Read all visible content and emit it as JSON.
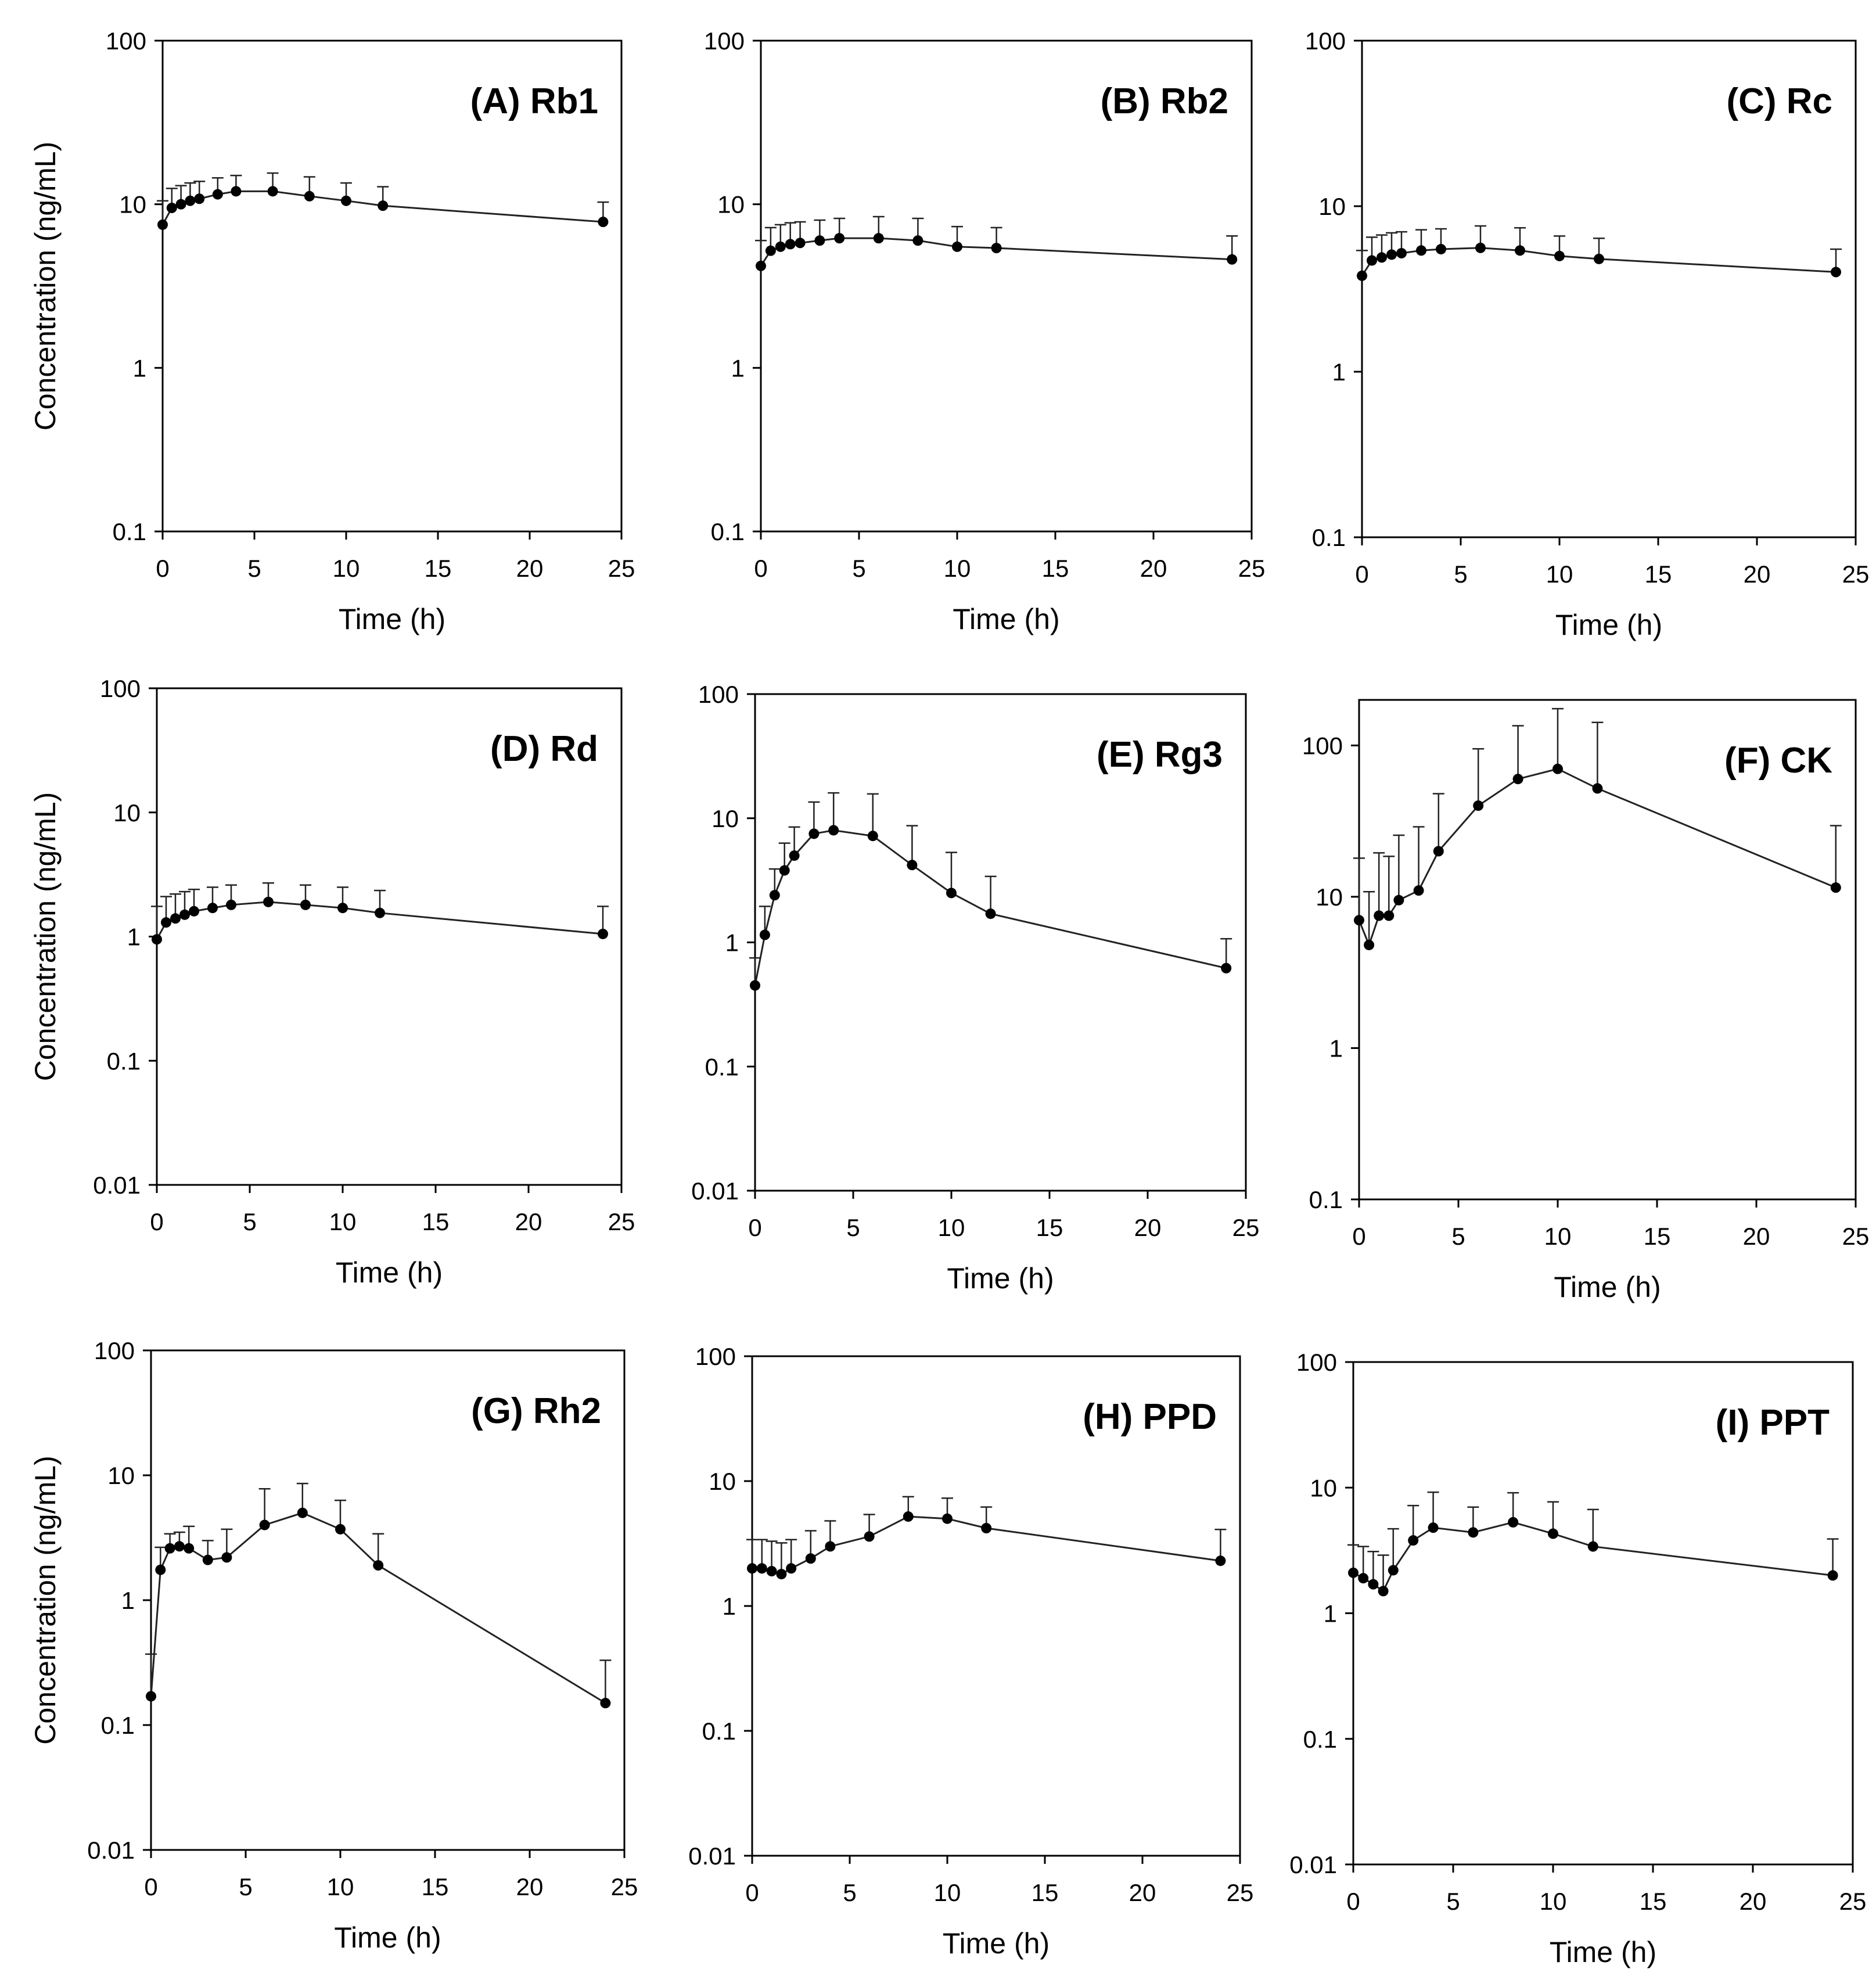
{
  "chart_data": [
    {
      "type": "line",
      "title": "(A) Rb1",
      "xlabel": "Time (h)",
      "ylabel": "Concentration (ng/mL)",
      "xlim": [
        0,
        25
      ],
      "ylim": [
        0.1,
        100
      ],
      "yscale": "log",
      "xticks": [
        "0",
        "5",
        "10",
        "15",
        "20",
        "25"
      ],
      "yticks": [
        "0.1",
        "1",
        "10",
        "100"
      ],
      "series": [
        {
          "name": "Rb1",
          "x": [
            0,
            0.5,
            1,
            1.5,
            2,
            3,
            4,
            6,
            8,
            10,
            12,
            24
          ],
          "y": [
            7.5,
            9.5,
            10.0,
            10.5,
            10.8,
            11.5,
            12.0,
            12.0,
            11.2,
            10.5,
            9.8,
            7.8
          ],
          "err": [
            3.0,
            3.0,
            3.0,
            3.0,
            3.0,
            3.0,
            3.0,
            3.5,
            3.5,
            3.0,
            3.0,
            2.5
          ]
        }
      ]
    },
    {
      "type": "line",
      "title": "(B) Rb2",
      "xlabel": "Time (h)",
      "ylabel": "",
      "xlim": [
        0,
        25
      ],
      "ylim": [
        0.1,
        100
      ],
      "yscale": "log",
      "xticks": [
        "0",
        "5",
        "10",
        "15",
        "20",
        "25"
      ],
      "yticks": [
        "0.1",
        "1",
        "10",
        "100"
      ],
      "series": [
        {
          "name": "Rb2",
          "x": [
            0,
            0.5,
            1,
            1.5,
            2,
            3,
            4,
            6,
            8,
            10,
            12,
            24
          ],
          "y": [
            4.2,
            5.2,
            5.5,
            5.7,
            5.8,
            6.0,
            6.2,
            6.2,
            6.0,
            5.5,
            5.4,
            4.6
          ],
          "err": [
            1.8,
            2.0,
            2.0,
            2.0,
            2.0,
            2.0,
            2.0,
            2.2,
            2.2,
            1.8,
            1.8,
            1.8
          ]
        }
      ]
    },
    {
      "type": "line",
      "title": "(C) Rc",
      "xlabel": "Time (h)",
      "ylabel": "",
      "xlim": [
        0,
        25
      ],
      "ylim": [
        0.1,
        100
      ],
      "yscale": "log",
      "xticks": [
        "0",
        "5",
        "10",
        "15",
        "20",
        "25"
      ],
      "yticks": [
        "0.1",
        "1",
        "10",
        "100"
      ],
      "series": [
        {
          "name": "Rc",
          "x": [
            0,
            0.5,
            1,
            1.5,
            2,
            3,
            4,
            6,
            8,
            10,
            12,
            24
          ],
          "y": [
            3.8,
            4.7,
            4.9,
            5.1,
            5.2,
            5.4,
            5.5,
            5.6,
            5.4,
            5.0,
            4.8,
            4.0
          ],
          "err": [
            1.6,
            1.8,
            1.8,
            1.8,
            1.8,
            1.8,
            1.8,
            2.0,
            2.0,
            1.6,
            1.6,
            1.5
          ]
        }
      ]
    },
    {
      "type": "line",
      "title": "(D) Rd",
      "xlabel": "Time (h)",
      "ylabel": "Concentration (ng/mL)",
      "xlim": [
        0,
        25
      ],
      "ylim": [
        0.01,
        100
      ],
      "yscale": "log",
      "xticks": [
        "0",
        "5",
        "10",
        "15",
        "20",
        "25"
      ],
      "yticks": [
        "0.01",
        "0.1",
        "1",
        "10",
        "100"
      ],
      "series": [
        {
          "name": "Rd",
          "x": [
            0,
            0.5,
            1,
            1.5,
            2,
            3,
            4,
            6,
            8,
            10,
            12,
            24
          ],
          "y": [
            0.95,
            1.3,
            1.4,
            1.5,
            1.6,
            1.7,
            1.8,
            1.9,
            1.8,
            1.7,
            1.55,
            1.05
          ],
          "err": [
            0.8,
            0.8,
            0.8,
            0.8,
            0.8,
            0.8,
            0.8,
            0.8,
            0.8,
            0.8,
            0.8,
            0.7
          ]
        }
      ]
    },
    {
      "type": "line",
      "title": "(E) Rg3",
      "xlabel": "Time (h)",
      "ylabel": "",
      "xlim": [
        0,
        25
      ],
      "ylim": [
        0.01,
        100
      ],
      "yscale": "log",
      "xticks": [
        "0",
        "5",
        "10",
        "15",
        "20",
        "25"
      ],
      "yticks": [
        "0.01",
        "0.1",
        "1",
        "10",
        "100"
      ],
      "series": [
        {
          "name": "Rg3",
          "x": [
            0,
            0.5,
            1,
            1.5,
            2,
            3,
            4,
            6,
            8,
            10,
            12,
            24
          ],
          "y": [
            0.45,
            1.15,
            2.4,
            3.8,
            5.0,
            7.5,
            8.0,
            7.2,
            4.2,
            2.5,
            1.7,
            0.62
          ],
          "err": [
            0.3,
            0.8,
            1.5,
            2.5,
            3.5,
            6.0,
            8.0,
            8.5,
            4.5,
            2.8,
            1.7,
            0.45
          ]
        }
      ]
    },
    {
      "type": "line",
      "title": "(F) CK",
      "xlabel": "Time (h)",
      "ylabel": "",
      "xlim": [
        0,
        25
      ],
      "ylim": [
        0.1,
        200
      ],
      "yscale": "log",
      "xticks": [
        "0",
        "5",
        "10",
        "15",
        "20",
        "25"
      ],
      "yticks": [
        "0.1",
        "1",
        "10",
        "100"
      ],
      "series": [
        {
          "name": "CK",
          "x": [
            0,
            0.5,
            1,
            1.5,
            2,
            3,
            4,
            6,
            8,
            10,
            12,
            24
          ],
          "y": [
            7.0,
            4.8,
            7.5,
            7.5,
            9.5,
            11.0,
            20.0,
            40.0,
            60.0,
            70.0,
            52.0,
            11.5
          ],
          "err": [
            11.0,
            6.0,
            12.0,
            11.0,
            16.0,
            18.0,
            28.0,
            55.0,
            75.0,
            105.0,
            90.0,
            18.0
          ]
        }
      ]
    },
    {
      "type": "line",
      "title": "(G) Rh2",
      "xlabel": "Time (h)",
      "ylabel": "Concentration (ng/mL)",
      "xlim": [
        0,
        25
      ],
      "ylim": [
        0.01,
        100
      ],
      "yscale": "log",
      "xticks": [
        "0",
        "5",
        "10",
        "15",
        "20",
        "25"
      ],
      "yticks": [
        "0.01",
        "0.1",
        "1",
        "10",
        "100"
      ],
      "series": [
        {
          "name": "Rh2",
          "x": [
            0,
            0.5,
            1,
            1.5,
            2,
            3,
            4,
            6,
            8,
            10,
            12,
            24
          ],
          "y": [
            0.17,
            1.75,
            2.6,
            2.7,
            2.6,
            2.1,
            2.2,
            4.0,
            5.0,
            3.7,
            1.9,
            0.15
          ],
          "err": [
            0.2,
            0.9,
            0.8,
            0.8,
            1.3,
            0.9,
            1.5,
            3.8,
            3.6,
            2.6,
            1.5,
            0.18
          ]
        }
      ]
    },
    {
      "type": "line",
      "title": "(H) PPD",
      "xlabel": "Time (h)",
      "ylabel": "",
      "xlim": [
        0,
        25
      ],
      "ylim": [
        0.01,
        100
      ],
      "yscale": "log",
      "xticks": [
        "0",
        "5",
        "10",
        "15",
        "20",
        "25"
      ],
      "yticks": [
        "0.01",
        "0.1",
        "1",
        "10",
        "100"
      ],
      "series": [
        {
          "name": "PPD",
          "x": [
            0,
            0.5,
            1,
            1.5,
            2,
            3,
            4,
            6,
            8,
            10,
            12,
            24
          ],
          "y": [
            2.0,
            2.0,
            1.9,
            1.8,
            2.0,
            2.4,
            3.0,
            3.6,
            5.2,
            5.0,
            4.2,
            2.3
          ],
          "err": [
            1.4,
            1.4,
            1.4,
            1.4,
            1.4,
            1.6,
            1.8,
            1.8,
            2.3,
            2.3,
            2.0,
            1.8
          ]
        }
      ]
    },
    {
      "type": "line",
      "title": "(I) PPT",
      "xlabel": "Time (h)",
      "ylabel": "",
      "xlim": [
        0,
        25
      ],
      "ylim": [
        0.01,
        100
      ],
      "yscale": "log",
      "xticks": [
        "0",
        "5",
        "10",
        "15",
        "20",
        "25"
      ],
      "yticks": [
        "0.01",
        "0.1",
        "1",
        "10",
        "100"
      ],
      "series": [
        {
          "name": "PPT",
          "x": [
            0,
            0.5,
            1,
            1.5,
            2,
            3,
            4,
            6,
            8,
            10,
            12,
            24
          ],
          "y": [
            2.1,
            1.9,
            1.7,
            1.5,
            2.2,
            3.8,
            4.8,
            4.4,
            5.3,
            4.3,
            3.4,
            2.0
          ],
          "err": [
            1.4,
            1.5,
            1.4,
            1.4,
            2.5,
            3.4,
            4.4,
            2.6,
            3.8,
            3.4,
            3.3,
            1.9
          ]
        }
      ]
    }
  ]
}
